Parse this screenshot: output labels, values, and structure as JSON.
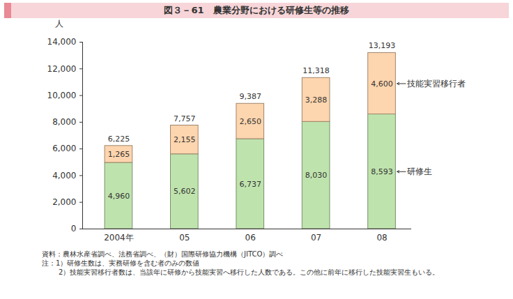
{
  "chart_data": {
    "type": "bar",
    "title": "図３－61　農業分野における研修生等の推移",
    "y_label": "人",
    "categories": [
      "2004年",
      "05",
      "06",
      "07",
      "08"
    ],
    "series": [
      {
        "name": "研修生",
        "color": "#bfe3ad",
        "values": [
          4960,
          5602,
          6737,
          8030,
          8593
        ],
        "value_labels": [
          "4,960",
          "5,602",
          "6,737",
          "8,030",
          "8,593"
        ]
      },
      {
        "name": "技能実習移行者",
        "color": "#fdd5ae",
        "values": [
          1265,
          2155,
          2650,
          3288,
          4600
        ],
        "value_labels": [
          "1,265",
          "2,155",
          "2,650",
          "3,288",
          "4,600"
        ]
      }
    ],
    "totals": [
      6225,
      7757,
      9387,
      11318,
      13193
    ],
    "total_labels": [
      "6,225",
      "7,757",
      "9,387",
      "11,318",
      "13,193"
    ],
    "ylim": [
      0,
      14000
    ],
    "yticks": [
      0,
      {
        "value": 2000,
        "label": "2,000"
      },
      {
        "value": 4000,
        "label": "4,000"
      },
      {
        "value": 6000,
        "label": "6,000"
      },
      {
        "value": 8000,
        "label": "8,000"
      },
      {
        "value": 10000,
        "label": "10,000"
      },
      {
        "value": 12000,
        "label": "12,000"
      },
      {
        "value": 14000,
        "label": "14,000"
      }
    ],
    "stacked": true,
    "data_labels": true,
    "legend": "right",
    "grid": false,
    "source": "資料：農林水産省調べ、法務省調べ、（財）国際研修協力機構（JITCO）調べ",
    "notes": [
      "注：1）研修生数は、実務研修を含む者のみの数値",
      "2）技能実習移行者数は、当該年に研修から技能実習へ移行した人数である。この他に前年に移行した技能実習生もいる。"
    ]
  }
}
